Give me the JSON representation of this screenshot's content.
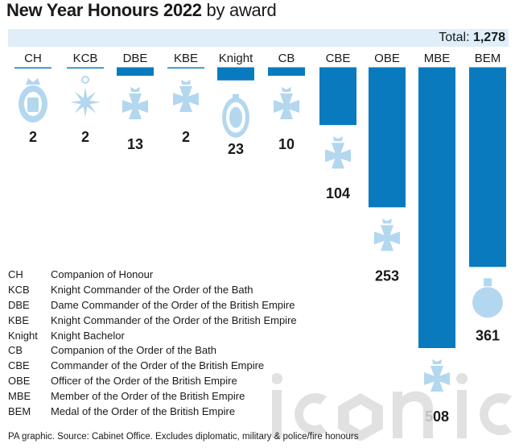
{
  "header": {
    "title_bold": "New Year Honours 2022",
    "title_rest": " by award",
    "total_label": "Total: ",
    "total_value": "1,278"
  },
  "chart_data": {
    "type": "bar",
    "categories": [
      "CH",
      "KCB",
      "DBE",
      "KBE",
      "Knight",
      "CB",
      "CBE",
      "OBE",
      "MBE",
      "BEM"
    ],
    "values": [
      2,
      2,
      13,
      2,
      23,
      10,
      104,
      253,
      508,
      361
    ],
    "value_labels": [
      "2",
      "2",
      "13",
      "2",
      "23",
      "10",
      "104",
      "253",
      "508",
      "361"
    ],
    "total": 1278,
    "ylim": [
      0,
      508
    ],
    "orientation": "downward",
    "bar_color": "#0a7abf",
    "icon_color": "#b3d7ef",
    "icons": [
      "companion-of-honour-badge-icon",
      "kcb-star-icon",
      "dbe-cross-icon",
      "kbe-cross-icon",
      "knight-bachelor-badge-icon",
      "cb-cross-icon",
      "cbe-cross-icon",
      "obe-cross-icon",
      "mbe-cross-icon",
      "bem-medal-icon"
    ]
  },
  "legend": [
    {
      "abbr": "CH",
      "name": "Companion of Honour"
    },
    {
      "abbr": "KCB",
      "name": "Knight Commander of the Order of the Bath"
    },
    {
      "abbr": "DBE",
      "name": "Dame Commander of the Order of the British Empire"
    },
    {
      "abbr": "KBE",
      "name": "Knight Commander of the Order of the British Empire"
    },
    {
      "abbr": "Knight",
      "name": "Knight Bachelor"
    },
    {
      "abbr": "CB",
      "name": "Companion of the Order of the Bath"
    },
    {
      "abbr": "CBE",
      "name": "Commander of the Order of the British Empire"
    },
    {
      "abbr": "OBE",
      "name": "Officer of the Order of the British Empire"
    },
    {
      "abbr": "MBE",
      "name": "Member of the Order of the British Empire"
    },
    {
      "abbr": "BEM",
      "name": "Medal of the Order of the British Empire"
    }
  ],
  "footer": {
    "source": "PA graphic. Source: Cabinet Office. Excludes diplomatic, military & police/fire honours"
  },
  "watermark": {
    "text": "iconic",
    "color": "#dcdcdc"
  }
}
